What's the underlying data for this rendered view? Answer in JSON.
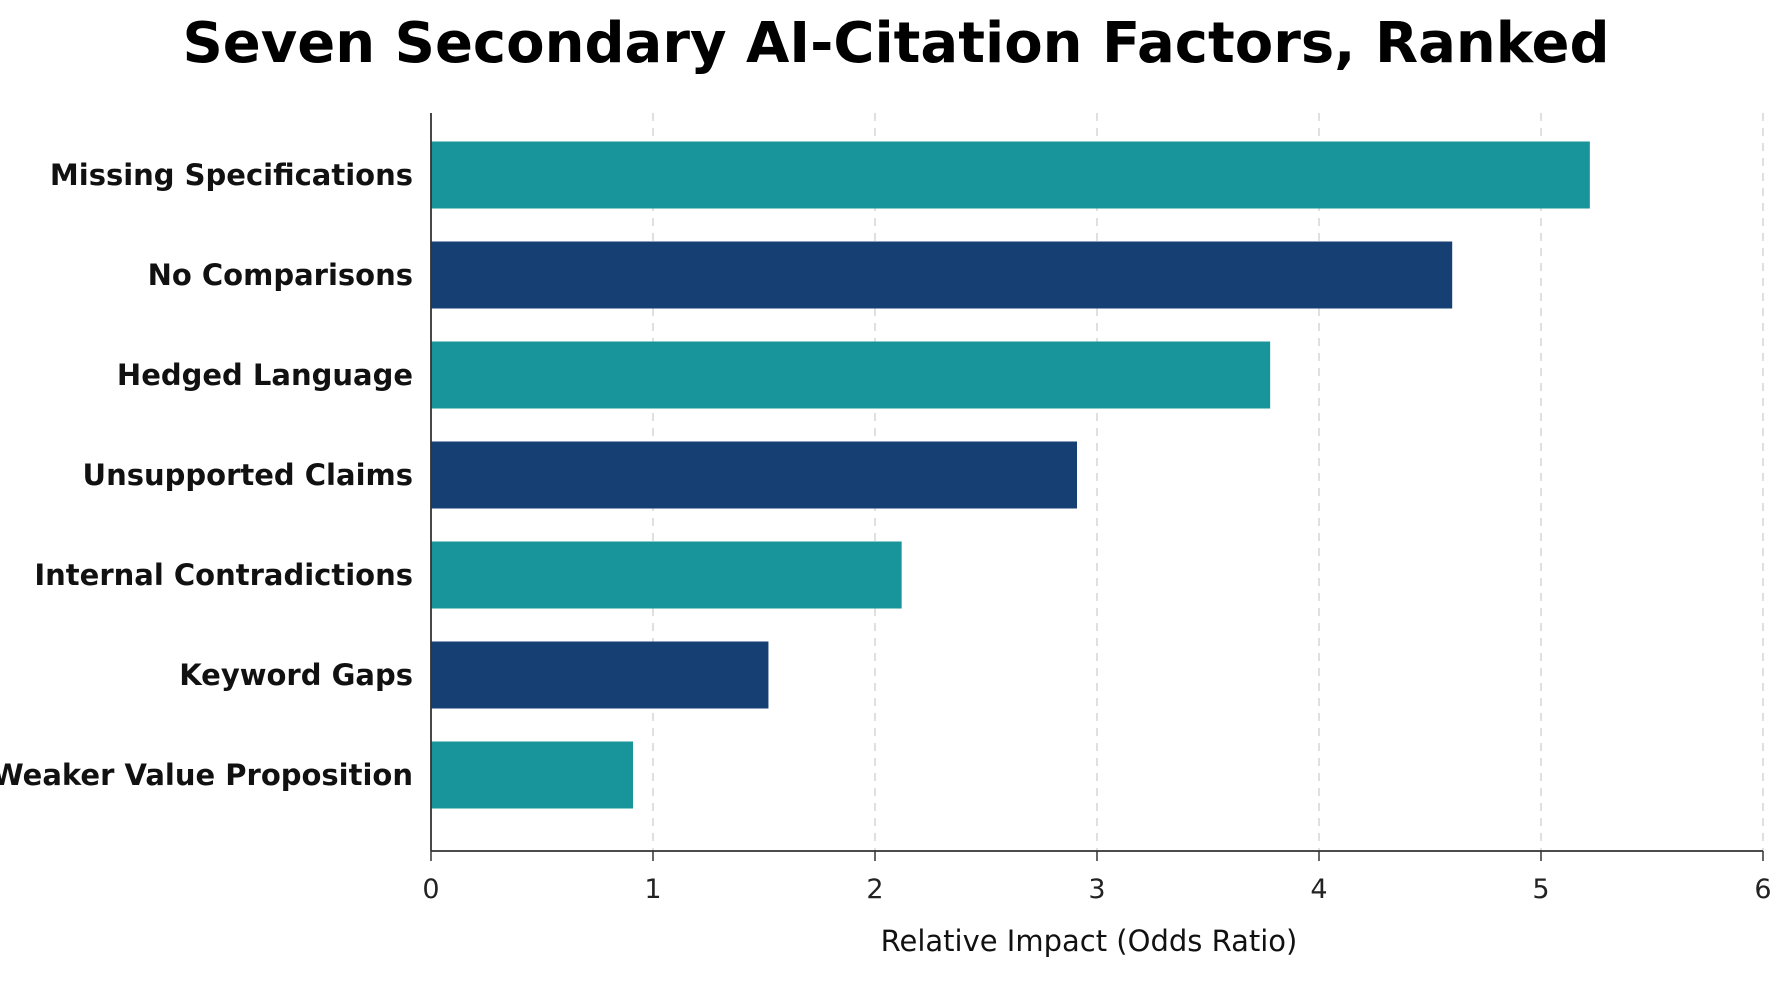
{
  "chart_data": {
    "type": "bar",
    "orientation": "horizontal",
    "title": "Seven Secondary AI-Citation Factors, Ranked",
    "xlabel": "Relative Impact (Odds Ratio)",
    "ylabel": "",
    "categories": [
      "Missing Specifications",
      "No Comparisons",
      "Hedged Language",
      "Unsupported Claims",
      "Internal Contradictions",
      "Keyword Gaps",
      "Weaker Value Proposition"
    ],
    "values": [
      5.22,
      4.6,
      3.78,
      2.91,
      2.12,
      1.52,
      0.91
    ],
    "xlim": [
      0,
      6
    ],
    "xticks": [
      "0",
      "1",
      "2",
      "3",
      "4",
      "5",
      "6"
    ],
    "grid": "vertical-dashed",
    "colors": {
      "teal": "#17959a",
      "navy": "#163f73"
    },
    "bar_colors": [
      "#17959a",
      "#163f73",
      "#17959a",
      "#163f73",
      "#17959a",
      "#163f73",
      "#17959a"
    ]
  }
}
